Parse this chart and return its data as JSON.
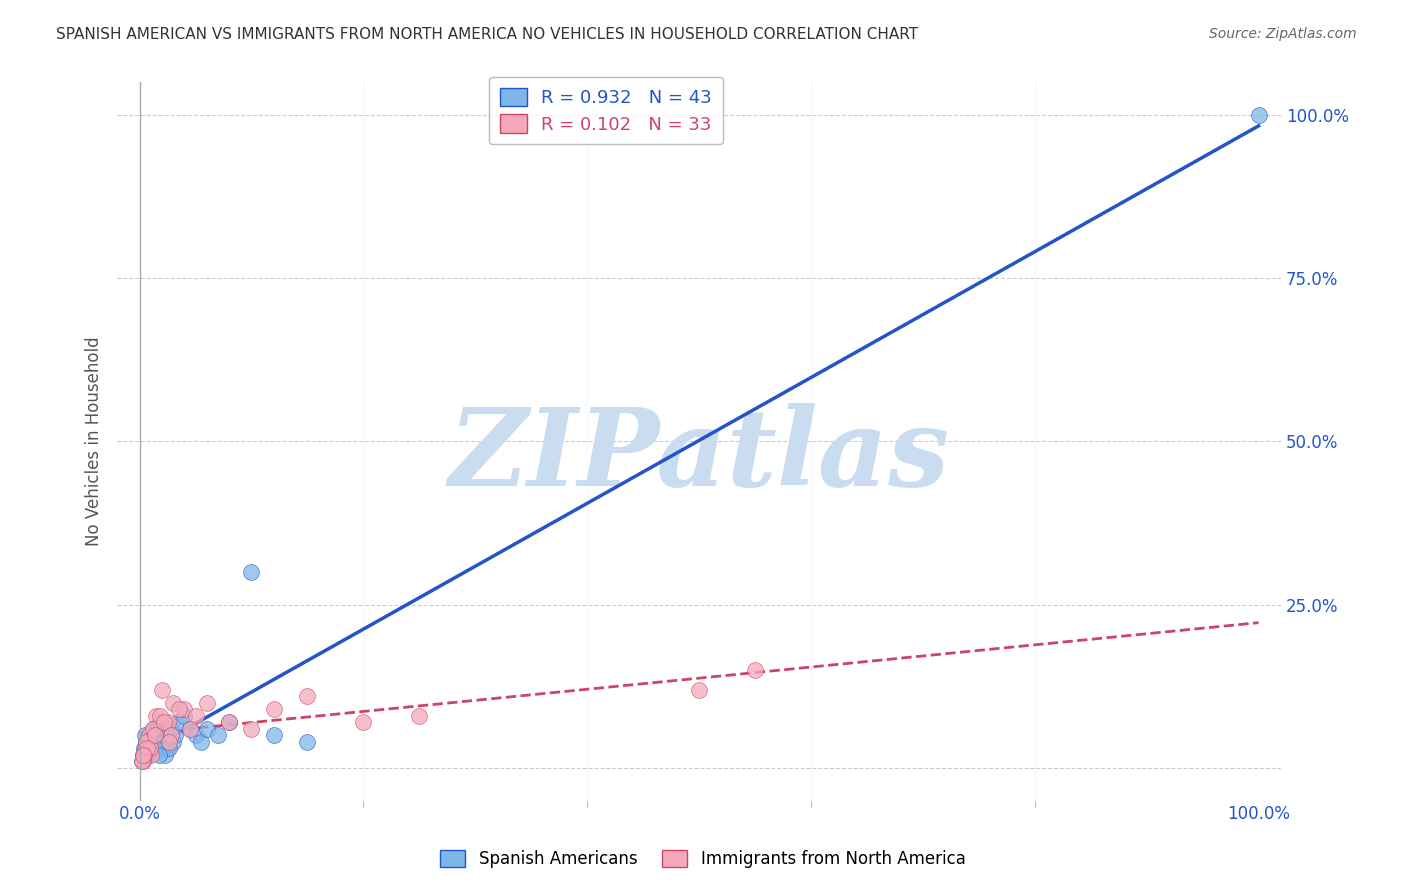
{
  "title": "SPANISH AMERICAN VS IMMIGRANTS FROM NORTH AMERICA NO VEHICLES IN HOUSEHOLD CORRELATION CHART",
  "source": "Source: ZipAtlas.com",
  "ylabel": "No Vehicles in Household",
  "watermark": "ZIPatlas",
  "blue_label": "Spanish Americans",
  "pink_label": "Immigrants from North America",
  "blue_R": 0.932,
  "blue_N": 43,
  "pink_R": 0.102,
  "pink_N": 33,
  "blue_color": "#7EB6E8",
  "blue_line_color": "#2255CC",
  "pink_color": "#F4AABB",
  "pink_line_color": "#CC4466",
  "bg_color": "#FFFFFF",
  "grid_color": "#CCCCCC",
  "title_color": "#333333",
  "source_color": "#666666",
  "axis_label_color": "#2255CC",
  "watermark_color": "#CADDF0",
  "blue_scatter_x": [
    0.5,
    0.8,
    1.0,
    1.2,
    1.5,
    1.8,
    2.0,
    2.2,
    2.5,
    2.8,
    3.0,
    3.2,
    3.5,
    4.0,
    4.5,
    5.0,
    5.5,
    6.0,
    7.0,
    8.0,
    10.0,
    12.0,
    15.0,
    0.3,
    0.4,
    0.6,
    0.7,
    0.9,
    1.1,
    1.3,
    1.6,
    1.9,
    2.1,
    2.3,
    2.6,
    0.2,
    0.35,
    0.55,
    0.75,
    0.95,
    1.4,
    1.7,
    100.0
  ],
  "blue_scatter_y": [
    5.0,
    3.0,
    4.0,
    6.0,
    5.0,
    7.0,
    4.0,
    5.0,
    3.0,
    6.0,
    4.0,
    5.0,
    7.0,
    8.0,
    6.0,
    5.0,
    4.0,
    6.0,
    5.0,
    7.0,
    30.0,
    5.0,
    4.0,
    2.0,
    3.0,
    4.0,
    2.0,
    3.0,
    5.0,
    4.0,
    6.0,
    3.0,
    4.0,
    2.0,
    3.0,
    1.0,
    2.0,
    3.0,
    2.0,
    4.0,
    3.0,
    2.0,
    100.0
  ],
  "pink_scatter_x": [
    0.5,
    0.8,
    1.0,
    1.5,
    2.0,
    2.5,
    3.0,
    4.0,
    5.0,
    6.0,
    8.0,
    10.0,
    12.0,
    15.0,
    0.3,
    0.6,
    0.9,
    1.2,
    1.8,
    2.2,
    2.8,
    3.5,
    0.4,
    0.7,
    50.0,
    55.0,
    0.2,
    0.35,
    1.4,
    2.6,
    4.5,
    20.0,
    25.0
  ],
  "pink_scatter_y": [
    3.0,
    5.0,
    2.0,
    8.0,
    12.0,
    7.0,
    10.0,
    9.0,
    8.0,
    10.0,
    7.0,
    6.0,
    9.0,
    11.0,
    1.0,
    4.0,
    3.0,
    6.0,
    8.0,
    7.0,
    5.0,
    9.0,
    2.0,
    3.0,
    12.0,
    15.0,
    1.0,
    2.0,
    5.0,
    4.0,
    6.0,
    7.0,
    8.0
  ],
  "xlim": [
    -2,
    102
  ],
  "ylim": [
    -5,
    105
  ],
  "yticks": [
    0,
    25,
    50,
    75,
    100
  ],
  "ytick_labels": [
    "",
    "25.0%",
    "50.0%",
    "75.0%",
    "100.0%"
  ]
}
